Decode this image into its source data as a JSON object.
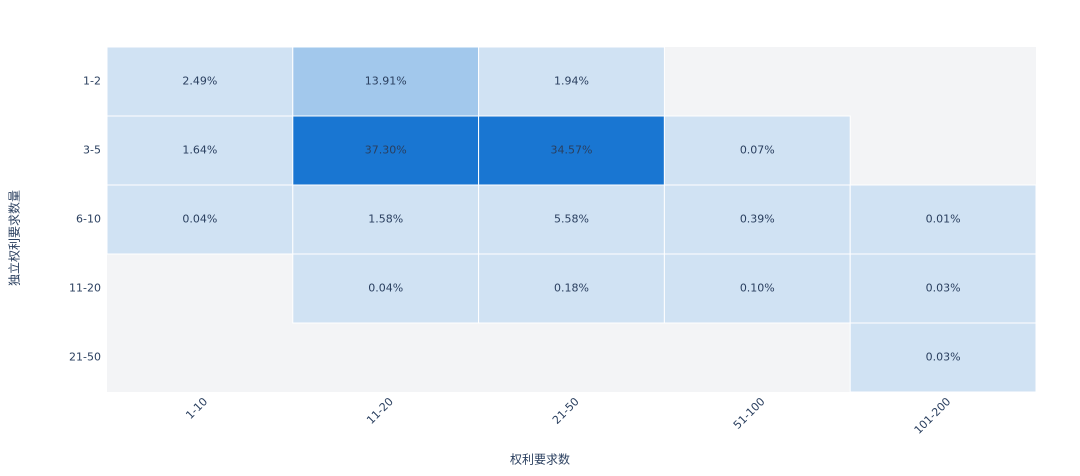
{
  "chart_data": {
    "type": "heatmap",
    "x_label": "权利要求数",
    "y_label": "独立权利要求数量",
    "x_categories": [
      "1-10",
      "11-20",
      "21-50",
      "51-100",
      "101-200"
    ],
    "y_categories": [
      "1-2",
      "3-5",
      "6-10",
      "11-20",
      "21-50"
    ],
    "values": [
      [
        2.49,
        13.91,
        1.94,
        null,
        null
      ],
      [
        1.64,
        37.3,
        34.57,
        0.07,
        null
      ],
      [
        0.04,
        1.58,
        5.58,
        0.39,
        0.01
      ],
      [
        null,
        0.04,
        0.18,
        0.1,
        0.03
      ],
      [
        null,
        null,
        null,
        null,
        0.03
      ]
    ],
    "value_labels": [
      [
        "2.49%",
        "13.91%",
        "1.94%",
        null,
        null
      ],
      [
        "1.64%",
        "37.30%",
        "34.57%",
        "0.07%",
        null
      ],
      [
        "0.04%",
        "1.58%",
        "5.58%",
        "0.39%",
        "0.01%"
      ],
      [
        null,
        "0.04%",
        "0.18%",
        "0.10%",
        "0.03%"
      ],
      [
        null,
        null,
        null,
        null,
        "0.03%"
      ]
    ],
    "colors": [
      [
        "#d0e2f3",
        "#a2c8ec",
        "#d0e2f3",
        null,
        null
      ],
      [
        "#d0e2f3",
        "#1976d2",
        "#1976d2",
        "#d0e2f3",
        null
      ],
      [
        "#d0e2f3",
        "#d0e2f3",
        "#d0e2f3",
        "#d0e2f3",
        "#d0e2f3"
      ],
      [
        null,
        "#d0e2f3",
        "#d0e2f3",
        "#d0e2f3",
        "#d0e2f3"
      ],
      [
        null,
        null,
        null,
        null,
        "#d0e2f3"
      ]
    ],
    "background": "#f3f4f6"
  }
}
